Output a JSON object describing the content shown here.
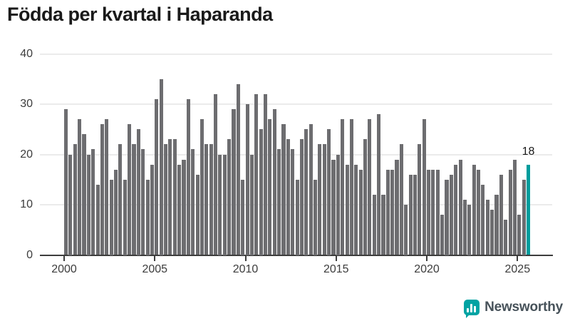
{
  "title": "Födda per kvartal i Haparanda",
  "chart_data": {
    "type": "bar",
    "frequency": "quarterly",
    "start_year": 2000,
    "start_quarter": 1,
    "end_period": "2025 Q3",
    "values": [
      29,
      20,
      22,
      27,
      24,
      20,
      21,
      14,
      26,
      27,
      15,
      17,
      22,
      15,
      26,
      22,
      25,
      21,
      15,
      18,
      31,
      35,
      22,
      23,
      23,
      18,
      19,
      31,
      21,
      16,
      27,
      22,
      22,
      32,
      20,
      20,
      23,
      29,
      34,
      15,
      30,
      20,
      32,
      25,
      32,
      27,
      29,
      21,
      26,
      23,
      21,
      15,
      23,
      25,
      26,
      15,
      22,
      22,
      25,
      19,
      20,
      27,
      18,
      27,
      18,
      17,
      23,
      27,
      12,
      28,
      12,
      17,
      17,
      19,
      22,
      10,
      16,
      16,
      22,
      27,
      17,
      17,
      17,
      8,
      15,
      16,
      18,
      19,
      11,
      10,
      18,
      17,
      14,
      11,
      9,
      12,
      16,
      7,
      17,
      19,
      8,
      15,
      18
    ],
    "title": "Födda per kvartal i Haparanda",
    "xlabel": "",
    "ylabel": "",
    "ylim": [
      0,
      40
    ],
    "yticks": [
      0,
      10,
      20,
      30,
      40
    ],
    "xticks": [
      2000,
      2005,
      2010,
      2015,
      2020,
      2025
    ],
    "grid": "horizontal",
    "legend": "none",
    "bar_color": "#6d6d70",
    "highlight_color": "#009d9d",
    "highlight_index": 102,
    "last_point": {
      "period": "2025 Q3",
      "value": 18,
      "label": "18"
    }
  },
  "annotation": {
    "last_value_label": "18"
  },
  "branding": {
    "name": "Newsworthy",
    "icon": "newsworthy-barchart-icon",
    "icon_color": "#00a3a3",
    "text_color": "#47525a"
  }
}
